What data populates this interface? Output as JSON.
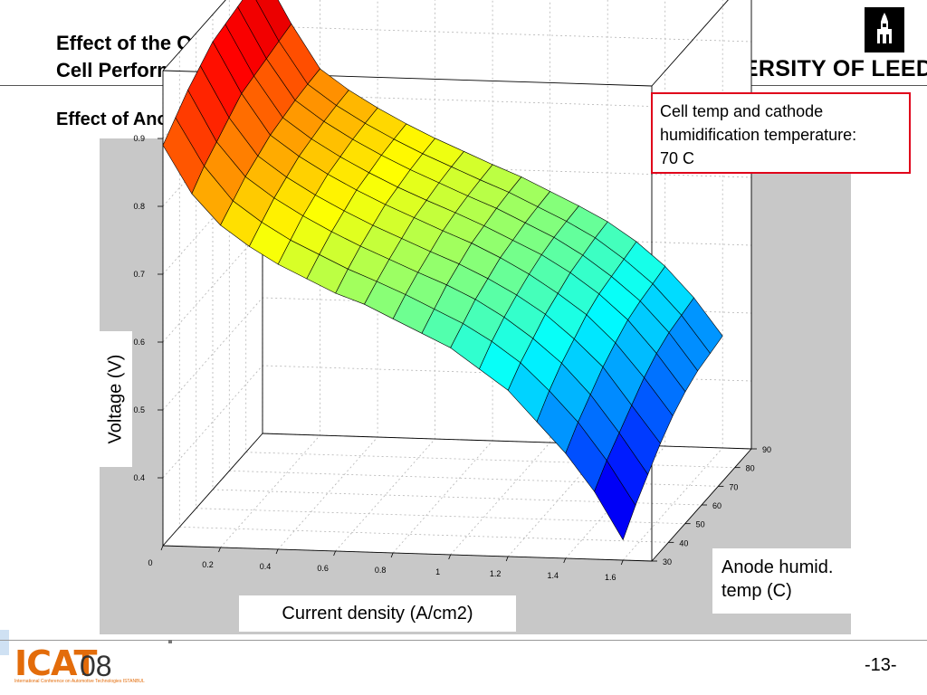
{
  "slide": {
    "title_line1": "Effect of the Operational Conditions on the",
    "title_line2": "Cell Performance",
    "subtitle": "Effect of Anode Humidification Temperature:",
    "university": "UNIVERSITY OF LEEDS",
    "callout_line1": "Cell temp and cathode",
    "callout_line2": "humidification temperature:",
    "callout_line3": "70 C",
    "page_number": "-13-",
    "conference_logo": "ICAT",
    "conference_year": "08",
    "conference_subtitle": "International Conference on Automotive Technologies  ISTANBUL"
  },
  "chart_data": {
    "type": "surface",
    "xlabel": "Current density (A/cm2)",
    "ylabel": "Voltage (V)",
    "zlabel_line1": "Anode humid.",
    "zlabel_line2": "temp (C)",
    "x_ticks": [
      0,
      0.2,
      0.4,
      0.6,
      0.8,
      1,
      1.2,
      1.4,
      1.6
    ],
    "x_tick_labels": [
      "0",
      "0.2",
      "0.4",
      "0.6",
      "0.8",
      "1",
      "1.2",
      "1.4",
      "1.6"
    ],
    "y_ticks": [
      30,
      40,
      50,
      60,
      70,
      80,
      90
    ],
    "y_tick_labels": [
      "30",
      "40",
      "50",
      "60",
      "70",
      "80",
      "90"
    ],
    "z_ticks": [
      0.4,
      0.5,
      0.6,
      0.7,
      0.8,
      0.9
    ],
    "z_tick_labels": [
      "0.4",
      "0.5",
      "0.6",
      "0.7",
      "0.8",
      "0.9"
    ],
    "xlim": [
      0,
      1.7
    ],
    "ylim": [
      30,
      90
    ],
    "zlim": [
      0.3,
      1.0
    ],
    "grid": true,
    "colormap": "jet",
    "current_density": [
      0.0,
      0.1,
      0.2,
      0.3,
      0.4,
      0.5,
      0.6,
      0.7,
      0.8,
      0.9,
      1.0,
      1.1,
      1.2,
      1.3,
      1.4,
      1.5,
      1.6
    ],
    "anode_temp": [
      30,
      37.5,
      45,
      52.5,
      60,
      67.5,
      75,
      82.5,
      90
    ],
    "voltage": [
      [
        0.89,
        0.82,
        0.775,
        0.745,
        0.72,
        0.7,
        0.68,
        0.665,
        0.645,
        0.625,
        0.605,
        0.575,
        0.545,
        0.5,
        0.455,
        0.4,
        0.33
      ],
      [
        0.91,
        0.84,
        0.79,
        0.76,
        0.735,
        0.715,
        0.695,
        0.678,
        0.66,
        0.64,
        0.62,
        0.595,
        0.565,
        0.525,
        0.48,
        0.425,
        0.36
      ],
      [
        0.93,
        0.855,
        0.805,
        0.775,
        0.75,
        0.728,
        0.708,
        0.69,
        0.672,
        0.655,
        0.635,
        0.61,
        0.58,
        0.545,
        0.5,
        0.445,
        0.385
      ],
      [
        0.945,
        0.87,
        0.815,
        0.785,
        0.76,
        0.738,
        0.718,
        0.7,
        0.682,
        0.665,
        0.645,
        0.622,
        0.595,
        0.56,
        0.52,
        0.465,
        0.41
      ],
      [
        0.96,
        0.885,
        0.825,
        0.795,
        0.77,
        0.748,
        0.728,
        0.71,
        0.692,
        0.675,
        0.655,
        0.632,
        0.605,
        0.575,
        0.535,
        0.485,
        0.43
      ],
      [
        0.965,
        0.89,
        0.83,
        0.8,
        0.775,
        0.753,
        0.733,
        0.715,
        0.698,
        0.68,
        0.66,
        0.64,
        0.615,
        0.585,
        0.548,
        0.5,
        0.445
      ],
      [
        0.97,
        0.895,
        0.835,
        0.805,
        0.78,
        0.758,
        0.738,
        0.72,
        0.702,
        0.685,
        0.665,
        0.645,
        0.62,
        0.59,
        0.555,
        0.51,
        0.455
      ],
      [
        0.975,
        0.9,
        0.838,
        0.808,
        0.783,
        0.761,
        0.741,
        0.723,
        0.705,
        0.688,
        0.668,
        0.648,
        0.625,
        0.595,
        0.56,
        0.515,
        0.46
      ],
      [
        0.98,
        0.905,
        0.84,
        0.81,
        0.785,
        0.763,
        0.743,
        0.725,
        0.707,
        0.69,
        0.67,
        0.65,
        0.628,
        0.6,
        0.565,
        0.52,
        0.465
      ]
    ]
  }
}
